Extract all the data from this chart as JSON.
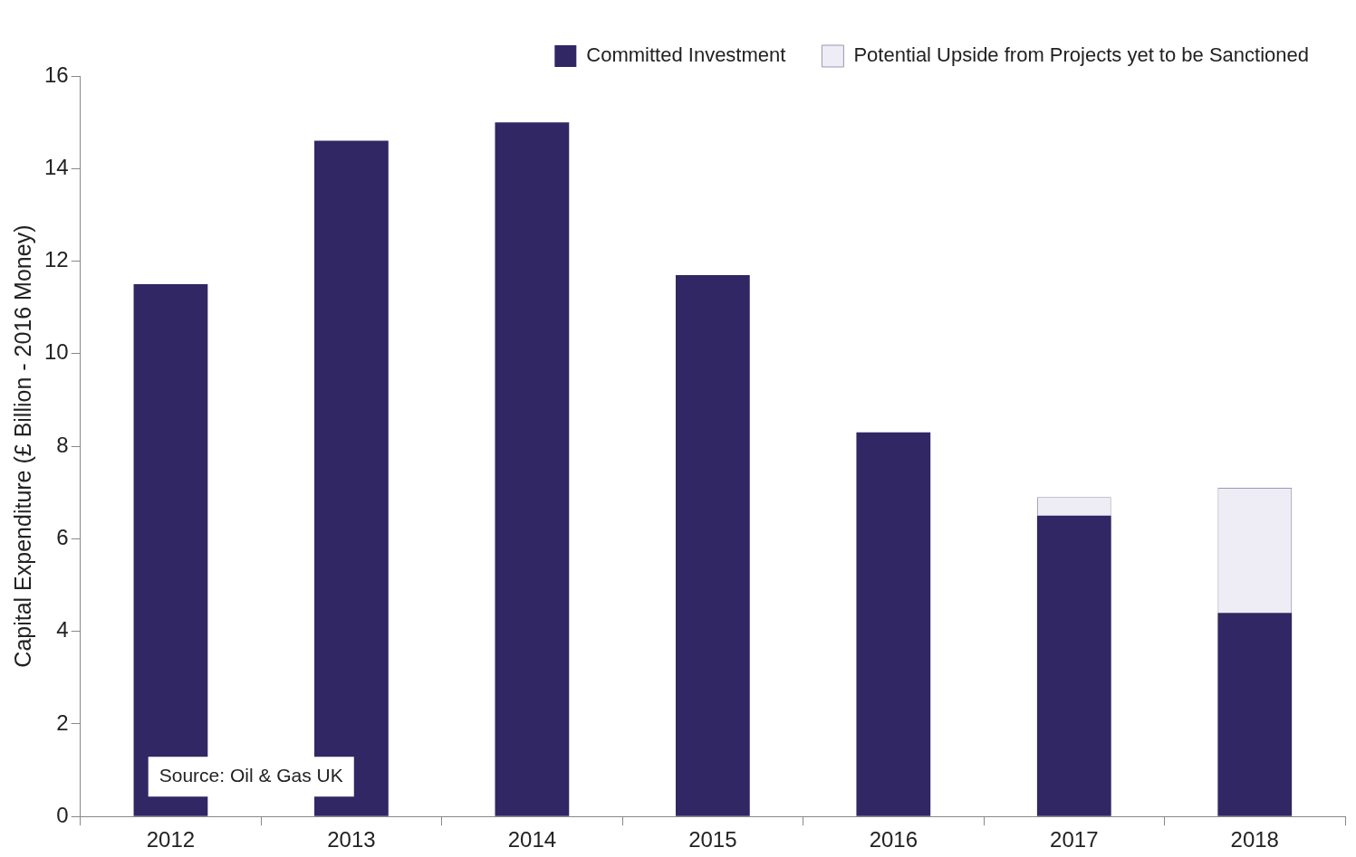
{
  "chart_data": {
    "type": "bar",
    "ylabel": "Capital Expenditure (£ Billion - 2016 Money)",
    "categories": [
      "2012",
      "2013",
      "2014",
      "2015",
      "2016",
      "2017",
      "2018"
    ],
    "stacked": true,
    "series": [
      {
        "name": "Committed Investment",
        "color": "#312764",
        "values": [
          11.5,
          14.6,
          15.0,
          11.7,
          8.3,
          6.5,
          4.4
        ]
      },
      {
        "name": "Potential Upside from Projects yet to be Sanctioned",
        "color": "#eeedf5",
        "values": [
          null,
          null,
          null,
          null,
          null,
          0.4,
          2.7
        ]
      }
    ],
    "ylim": [
      0,
      16
    ],
    "yticks": [
      0,
      2,
      4,
      6,
      8,
      10,
      12,
      14,
      16
    ],
    "grid": false,
    "legend": "top right",
    "annotations": [
      "Source: Oil & Gas UK"
    ]
  }
}
